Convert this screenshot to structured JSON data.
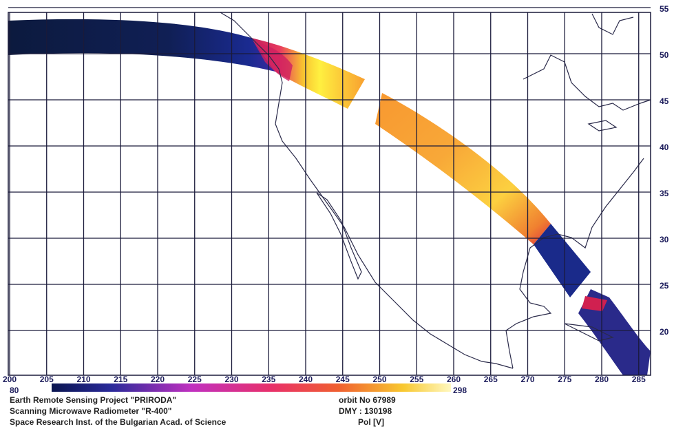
{
  "map": {
    "lon_ticks": [
      200,
      205,
      210,
      215,
      220,
      225,
      230,
      235,
      240,
      245,
      250,
      255,
      260,
      265,
      270,
      275,
      280,
      285
    ],
    "lat_ticks": [
      20,
      25,
      30,
      35,
      40,
      45,
      50,
      55
    ],
    "colorbar": {
      "min": 80,
      "max": 298
    }
  },
  "footer": {
    "project": "Earth Remote Sensing Project \"PRIRODA\"",
    "instrument": "Scanning Microwave Radiometer \"R-400\"",
    "institute": "Space Research Inst. of the Bulgarian Acad. of Science",
    "orbit": "orbit No 67989",
    "date": "DMY : 130198",
    "polarization": "Pol [V]"
  }
}
